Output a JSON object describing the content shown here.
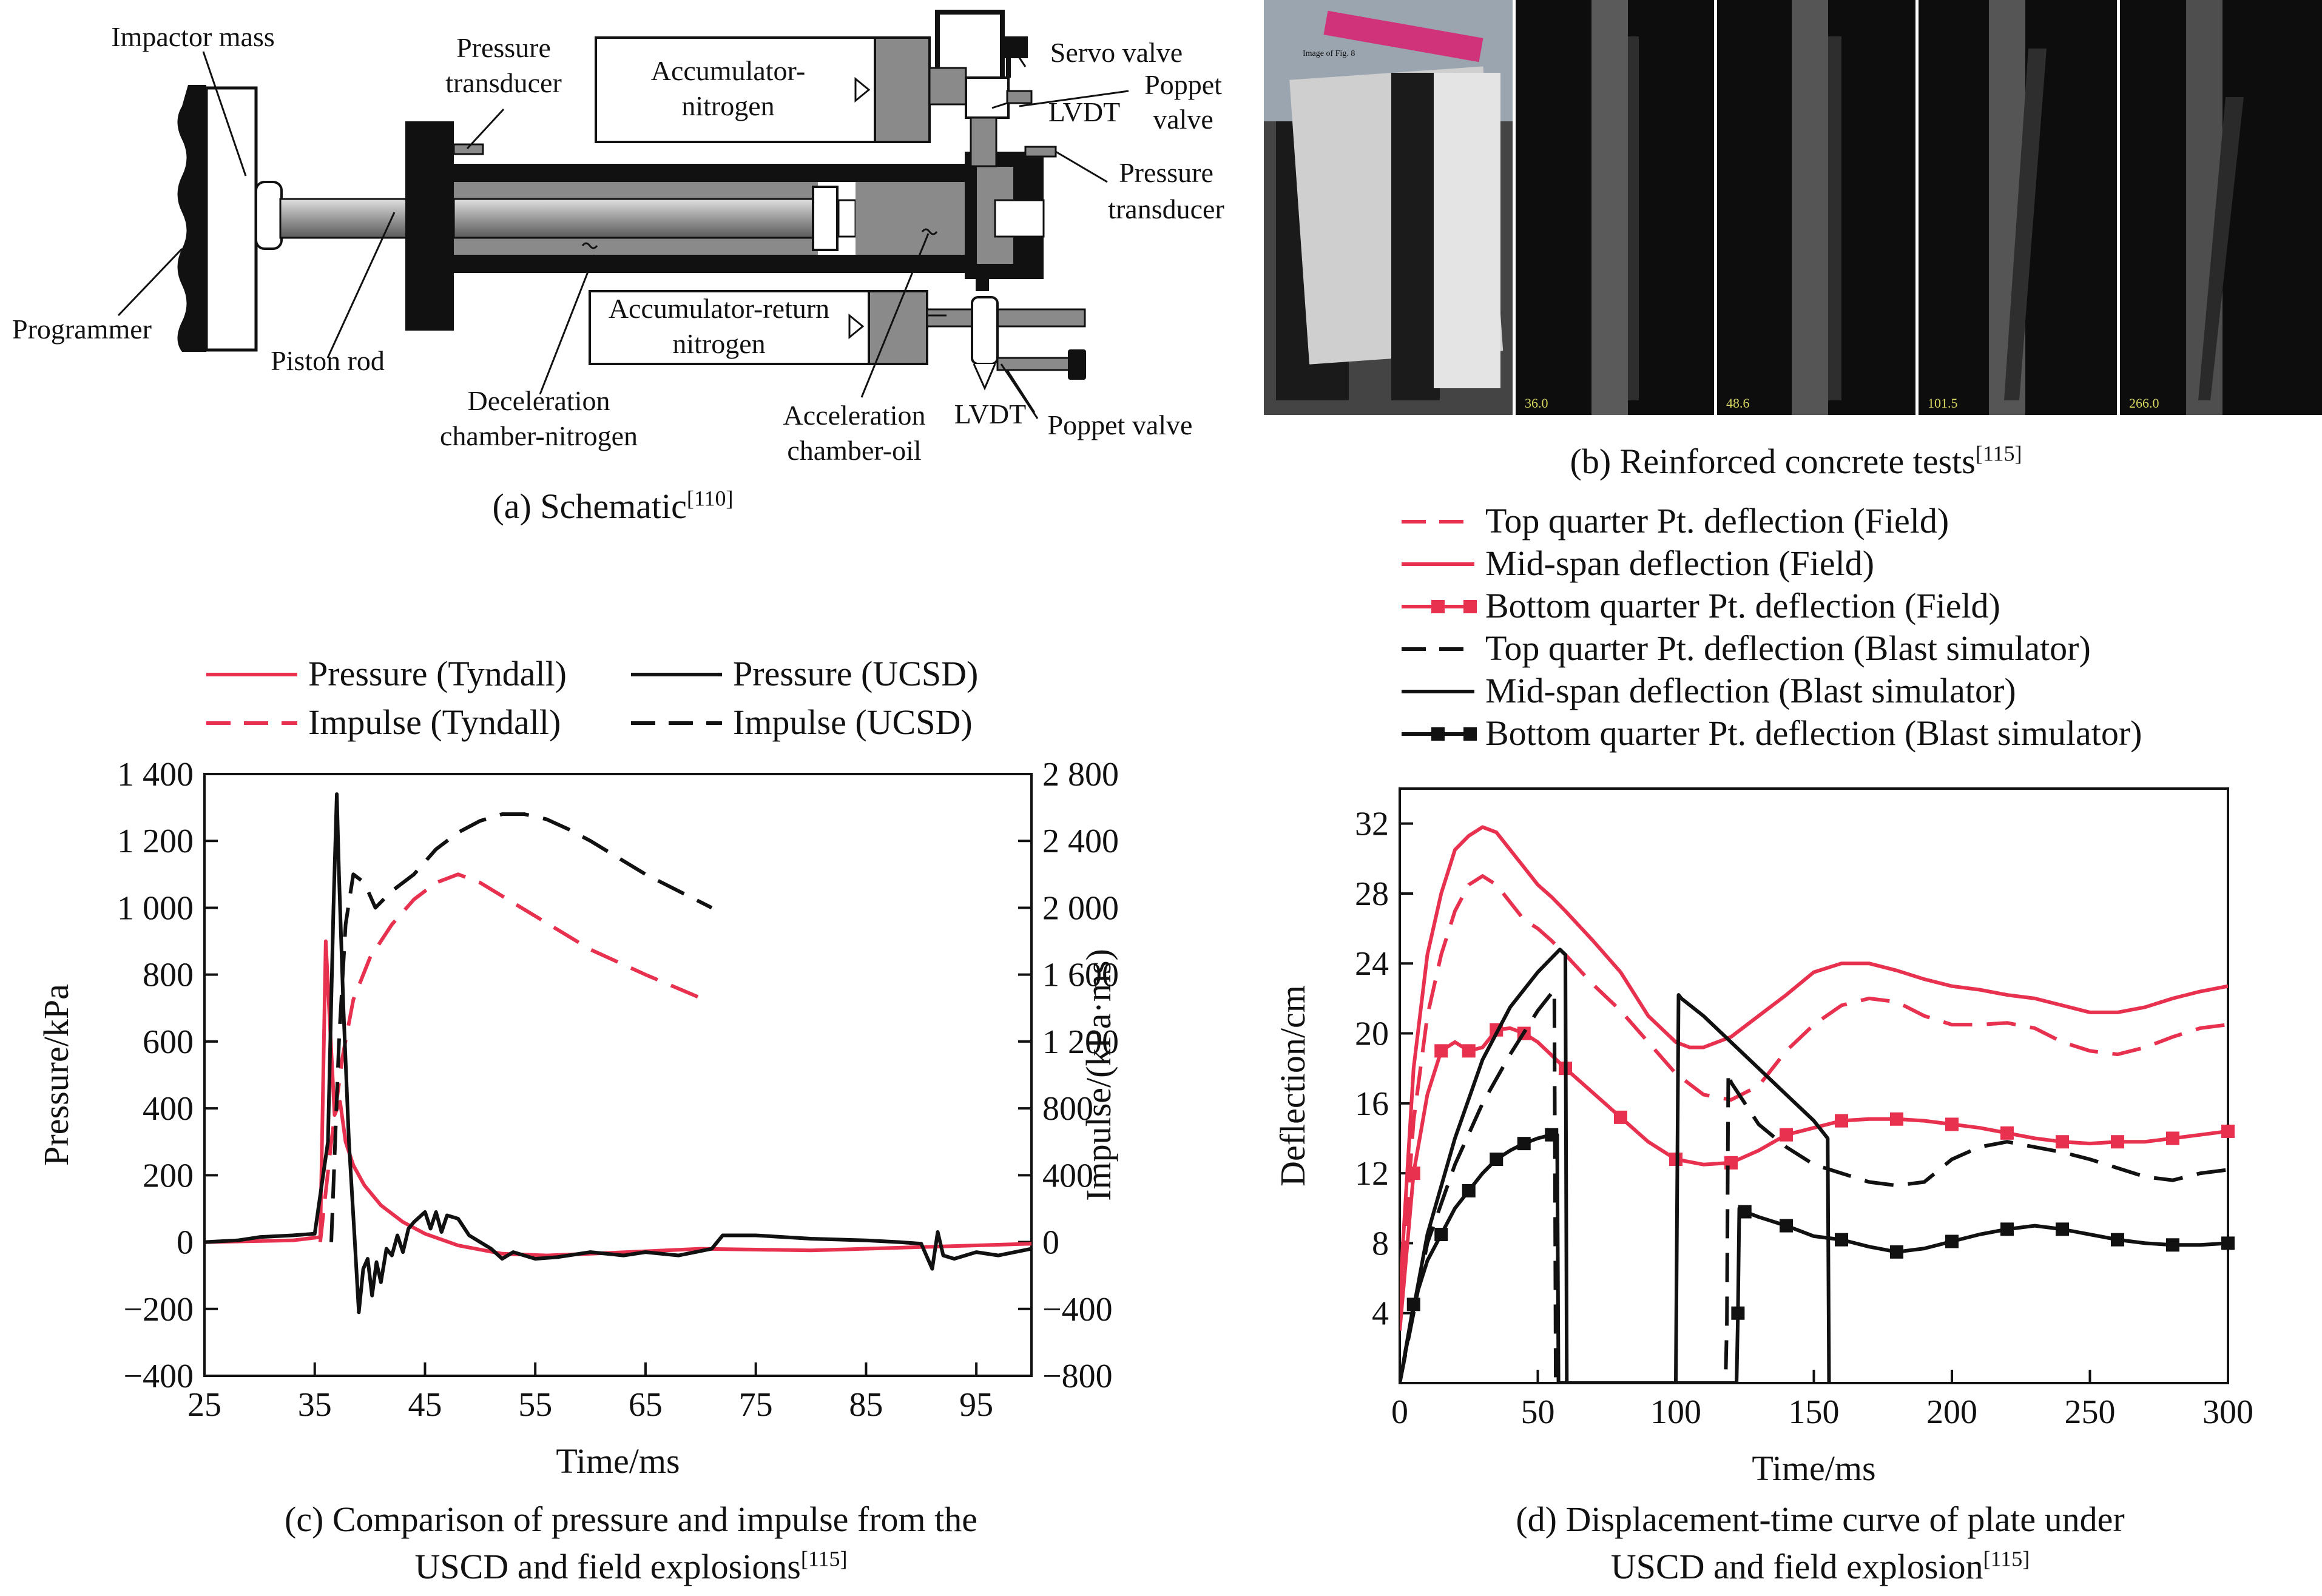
{
  "panel_a": {
    "labels": {
      "impactor_mass": "Impactor mass",
      "programmer": "Programmer",
      "piston_rod": "Piston rod",
      "pressure_transducer_1": [
        "Pressure",
        "transducer"
      ],
      "accumulator_nitrogen": [
        "Accumulator-",
        "nitrogen"
      ],
      "servo_valve": "Servo valve",
      "poppet_valve_top": [
        "Poppet",
        "valve"
      ],
      "lvdt_top": "LVDT",
      "pressure_transducer_2": [
        "Pressure",
        "transducer"
      ],
      "accumulator_return": [
        "Accumulator-return",
        "nitrogen"
      ],
      "deceleration_chamber": [
        "Deceleration",
        "chamber-nitrogen"
      ],
      "acceleration_chamber": [
        "Acceleration",
        "chamber-oil"
      ],
      "lvdt_bottom": "LVDT",
      "poppet_valve_bottom": "Poppet valve"
    },
    "caption": "(a) Schematic",
    "caption_ref": "[110]"
  },
  "panel_b": {
    "timestamps": [
      "36.0",
      "48.6",
      "101.5",
      "266.0"
    ],
    "small_label": "Image of Fig. 8",
    "caption": "(b) Reinforced concrete tests",
    "caption_ref": "[115]"
  },
  "chart_data": [
    {
      "type": "line",
      "id": "c",
      "xlabel": "Time/ms",
      "ylabel": "Pressure/kPa",
      "y2label": "Impulse/(kPa·ms)",
      "xlim": [
        25,
        100
      ],
      "ylim": [
        -400,
        1400
      ],
      "y2lim": [
        -800,
        2800
      ],
      "xticks": [
        "25",
        "35",
        "45",
        "55",
        "65",
        "75",
        "85",
        "95"
      ],
      "xtick_values": [
        25,
        35,
        45,
        55,
        65,
        75,
        85,
        95
      ],
      "yticks": [
        "1 400",
        "1 200",
        "1 000",
        "800",
        "600",
        "400",
        "200",
        "0",
        "−200",
        "−400"
      ],
      "ytick_values": [
        1400,
        1200,
        1000,
        800,
        600,
        400,
        200,
        0,
        -200,
        -400
      ],
      "y2ticks": [
        "2 800",
        "2 400",
        "2 000",
        "1 600",
        "1 200",
        "800",
        "400",
        "0",
        "−400",
        "−800"
      ],
      "series": [
        {
          "name": "Pressure (Tyndall)",
          "color": "#e8314f",
          "dash": "solid",
          "axis": "y",
          "x": [
            25,
            33,
            35.5,
            36.0,
            36.3,
            36.8,
            37.3,
            37.8,
            38.5,
            39.5,
            41,
            43,
            45,
            48,
            52,
            56,
            60,
            70,
            80,
            90,
            100
          ],
          "y": [
            0,
            5,
            15,
            900,
            700,
            380,
            420,
            300,
            230,
            170,
            110,
            60,
            25,
            -10,
            -35,
            -40,
            -35,
            -20,
            -25,
            -15,
            -5
          ]
        },
        {
          "name": "Impulse (Tyndall)",
          "color": "#e8314f",
          "dash": "long",
          "axis": "y2",
          "x": [
            35.5,
            36.5,
            37.5,
            38.5,
            40,
            42,
            44,
            46,
            48,
            50,
            55,
            60,
            65,
            70
          ],
          "y": [
            0,
            600,
            1100,
            1450,
            1700,
            1900,
            2050,
            2150,
            2200,
            2150,
            1950,
            1750,
            1600,
            1460
          ]
        },
        {
          "name": "Pressure (UCSD)",
          "color": "#111111",
          "dash": "solid",
          "axis": "y",
          "x": [
            25,
            28,
            30,
            33,
            35,
            36.2,
            36.7,
            37.0,
            37.2,
            37.6,
            38.1,
            38.6,
            39.0,
            39.4,
            39.8,
            40.2,
            40.6,
            41,
            41.5,
            42,
            42.5,
            43,
            43.5,
            44,
            45,
            45.5,
            46,
            46.5,
            47,
            48,
            49,
            50,
            51,
            52,
            53,
            55,
            57,
            60,
            63,
            65,
            68,
            71,
            72,
            75,
            80,
            85,
            88,
            90,
            91,
            91.5,
            92,
            93,
            95,
            97,
            100
          ],
          "y": [
            0,
            5,
            15,
            20,
            25,
            300,
            1000,
            1340,
            1100,
            700,
            300,
            20,
            -210,
            -80,
            -50,
            -160,
            -60,
            -120,
            -20,
            -40,
            20,
            -30,
            40,
            60,
            90,
            40,
            90,
            30,
            80,
            70,
            20,
            0,
            -20,
            -50,
            -30,
            -50,
            -45,
            -30,
            -40,
            -30,
            -40,
            -20,
            20,
            20,
            10,
            5,
            0,
            -5,
            -80,
            30,
            -40,
            -50,
            -30,
            -40,
            -20
          ]
        },
        {
          "name": "Impulse (UCSD)",
          "color": "#111111",
          "dash": "long",
          "axis": "y2",
          "x": [
            36.5,
            37.2,
            37.8,
            38.5,
            39.5,
            40.5,
            42,
            44,
            46,
            48,
            50,
            52,
            54,
            56,
            58,
            60,
            62,
            65,
            68,
            71
          ],
          "y": [
            0,
            1200,
            1900,
            2200,
            2150,
            2000,
            2100,
            2200,
            2350,
            2450,
            2520,
            2560,
            2560,
            2530,
            2470,
            2400,
            2320,
            2200,
            2100,
            2000
          ]
        }
      ]
    },
    {
      "type": "line",
      "id": "d",
      "xlabel": "Time/ms",
      "ylabel": "Deflection/cm",
      "xlim": [
        0,
        300
      ],
      "ylim": [
        0,
        34
      ],
      "xticks": [
        "0",
        "50",
        "100",
        "150",
        "200",
        "250",
        "300"
      ],
      "xtick_values": [
        0,
        50,
        100,
        150,
        200,
        250,
        300
      ],
      "yticks": [
        "4",
        "8",
        "12",
        "16",
        "20",
        "24",
        "28",
        "32"
      ],
      "ytick_values": [
        4,
        8,
        12,
        16,
        20,
        24,
        28,
        32
      ],
      "series": [
        {
          "name": "Top quarter Pt. deflection (Field)",
          "color": "#e8314f",
          "dash": "long",
          "marker": "none",
          "x": [
            0,
            5,
            10,
            15,
            20,
            25,
            30,
            35,
            40,
            45,
            50,
            55,
            60,
            70,
            80,
            90,
            100,
            110,
            120,
            130,
            140,
            150,
            160,
            170,
            180,
            190,
            200,
            210,
            220,
            230,
            240,
            250,
            260,
            270,
            280,
            290,
            300
          ],
          "y": [
            4,
            15,
            21,
            24.5,
            27,
            28.5,
            29,
            28.5,
            27.5,
            26.5,
            26,
            25.3,
            24.5,
            22.8,
            21.3,
            19.5,
            17.7,
            16.5,
            16.2,
            17,
            19,
            20.5,
            21.6,
            22,
            21.8,
            21,
            20.5,
            20.5,
            20.6,
            20.3,
            19.5,
            19,
            18.8,
            19.2,
            19.8,
            20.3,
            20.5
          ]
        },
        {
          "name": "Mid-span deflection (Field)",
          "color": "#e8314f",
          "dash": "solid",
          "marker": "none",
          "x": [
            0,
            5,
            10,
            15,
            20,
            25,
            30,
            35,
            40,
            45,
            50,
            55,
            60,
            70,
            80,
            90,
            100,
            105,
            110,
            120,
            130,
            140,
            150,
            160,
            170,
            180,
            190,
            200,
            210,
            220,
            230,
            240,
            250,
            260,
            270,
            280,
            290,
            300
          ],
          "y": [
            5,
            18,
            24.5,
            28,
            30.5,
            31.3,
            31.8,
            31.5,
            30.5,
            29.5,
            28.5,
            27.8,
            27,
            25.3,
            23.5,
            21,
            19.5,
            19.2,
            19.2,
            19.8,
            21,
            22.2,
            23.5,
            24,
            24,
            23.6,
            23.1,
            22.7,
            22.5,
            22.2,
            22,
            21.6,
            21.2,
            21.2,
            21.5,
            22,
            22.4,
            22.7
          ]
        },
        {
          "name": "Bottom quarter Pt. deflection (Field)",
          "color": "#e8314f",
          "dash": "solid",
          "marker": "square",
          "x": [
            0,
            5,
            10,
            15,
            20,
            25,
            30,
            35,
            40,
            45,
            50,
            60,
            70,
            80,
            90,
            100,
            110,
            120,
            130,
            140,
            150,
            160,
            170,
            180,
            190,
            200,
            210,
            220,
            230,
            240,
            250,
            260,
            270,
            280,
            290,
            300
          ],
          "y": [
            3,
            12,
            16.5,
            19,
            19.5,
            19,
            19.2,
            20.2,
            20.3,
            20,
            19.5,
            18,
            16.6,
            15.2,
            13.8,
            12.8,
            12.5,
            12.6,
            13.3,
            14.2,
            14.6,
            15,
            15.1,
            15.1,
            15,
            14.8,
            14.6,
            14.3,
            14,
            13.8,
            13.7,
            13.8,
            13.8,
            14,
            14.2,
            14.4
          ]
        },
        {
          "name": "Top quarter Pt. deflection (Blast simulator)",
          "color": "#111111",
          "dash": "long",
          "marker": "none",
          "x": [
            0,
            10,
            20,
            30,
            40,
            50,
            56,
            56.5,
            58,
            59,
            60,
            60.5,
            118,
            118.5,
            119,
            120,
            125,
            130,
            140,
            150,
            160,
            170,
            180,
            190,
            200,
            210,
            220,
            230,
            240,
            250,
            260,
            270,
            280,
            290,
            300
          ],
          "y": [
            0,
            8,
            12.5,
            16,
            18.8,
            21.3,
            22.5,
            0,
            0,
            0,
            0,
            0,
            0,
            3.5,
            17.8,
            17.2,
            16,
            14.8,
            13.5,
            12.5,
            12,
            11.5,
            11.3,
            11.5,
            12.8,
            13.5,
            13.8,
            13.5,
            13.2,
            12.8,
            12.3,
            11.8,
            11.6,
            12,
            12.2
          ]
        },
        {
          "name": "Mid-span deflection (Blast simulator)",
          "color": "#111111",
          "dash": "solid",
          "marker": "none",
          "x": [
            0,
            10,
            20,
            30,
            40,
            50,
            58,
            60,
            60.5,
            100,
            101,
            102,
            110,
            120,
            130,
            140,
            150,
            155,
            155.5
          ],
          "y": [
            0,
            8.5,
            14,
            18.5,
            21.5,
            23.5,
            24.8,
            24.5,
            0,
            0,
            22.2,
            22,
            21,
            19.5,
            18,
            16.5,
            15,
            14,
            0
          ]
        },
        {
          "name": "Bottom quarter Pt. deflection (Blast simulator)",
          "color": "#111111",
          "dash": "solid",
          "marker": "square",
          "x": [
            0,
            5,
            10,
            15,
            20,
            25,
            30,
            35,
            40,
            45,
            50,
            55,
            57,
            57.5,
            122,
            122.5,
            123,
            125,
            130,
            140,
            150,
            160,
            170,
            180,
            190,
            200,
            210,
            220,
            230,
            240,
            250,
            260,
            270,
            280,
            290,
            300
          ],
          "y": [
            0,
            4.5,
            7,
            8.5,
            10,
            11,
            12,
            12.8,
            13.3,
            13.7,
            14,
            14.2,
            14.2,
            0,
            0,
            4,
            10,
            9.8,
            9.5,
            9,
            8.4,
            8.2,
            7.8,
            7.5,
            7.7,
            8.1,
            8.5,
            8.8,
            9,
            8.8,
            8.5,
            8.2,
            8,
            7.9,
            7.9,
            8
          ]
        }
      ]
    }
  ],
  "captions": {
    "c": [
      "(c) Comparison of pressure and impulse from the",
      "USCD and field explosions"
    ],
    "c_ref": "[115]",
    "d": [
      "(d) Displacement-time curve of plate under",
      "USCD and field explosion"
    ],
    "d_ref": "[115]"
  }
}
